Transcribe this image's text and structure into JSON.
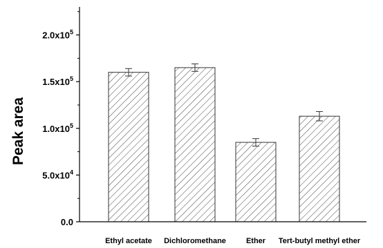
{
  "chart_data": {
    "type": "bar",
    "categories": [
      "Ethyl acetate",
      "Dichloromethane",
      "Ether",
      "Tert-butyl methyl ether"
    ],
    "values": [
      160000,
      165000,
      85000,
      113000
    ],
    "errors": [
      4000,
      4000,
      4000,
      5000
    ],
    "ylabel": "Peak area",
    "xlabel": "",
    "ylim": [
      0,
      230000
    ],
    "yticks": [
      {
        "value": 0,
        "mantissa": "0.0",
        "exp": ""
      },
      {
        "value": 50000,
        "mantissa": "5.0x10",
        "exp": "4"
      },
      {
        "value": 100000,
        "mantissa": "1.0x10",
        "exp": "5"
      },
      {
        "value": 150000,
        "mantissa": "1.5x10",
        "exp": "5"
      },
      {
        "value": 200000,
        "mantissa": "2.0x10",
        "exp": "5"
      }
    ],
    "bar_fill": "hatched",
    "bar_color": "#444444",
    "grid": false
  }
}
